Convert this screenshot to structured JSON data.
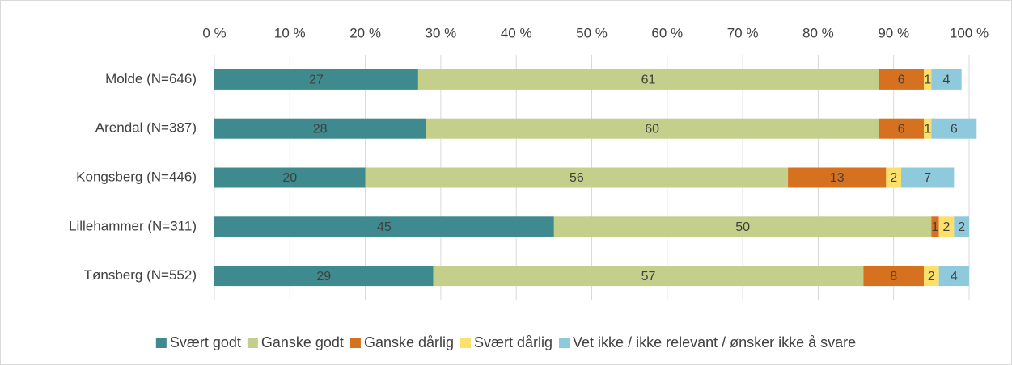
{
  "chart_data": {
    "type": "stacked-bar-horizontal",
    "categories": [
      "Molde (N=646)",
      "Arendal (N=387)",
      "Kongsberg (N=446)",
      "Lillehammer (N=311)",
      "Tønsberg (N=552)"
    ],
    "series": [
      {
        "name": "Svært godt",
        "color": "#3e8a8e",
        "values": [
          27,
          28,
          20,
          45,
          29
        ]
      },
      {
        "name": "Ganske godt",
        "color": "#c4cf8c",
        "values": [
          61,
          60,
          56,
          50,
          57
        ]
      },
      {
        "name": "Ganske dårlig",
        "color": "#d6711f",
        "values": [
          6,
          6,
          13,
          1,
          8
        ]
      },
      {
        "name": "Svært dårlig",
        "color": "#fde06c",
        "values": [
          1,
          1,
          2,
          2,
          2
        ]
      },
      {
        "name": "Vet ikke / ikke relevant /  ønsker ikke å svare",
        "color": "#8ecadb",
        "values": [
          4,
          6,
          7,
          2,
          4
        ]
      }
    ],
    "xlim": [
      0,
      100
    ],
    "xticks": [
      {
        "value": 0,
        "label": "0 %"
      },
      {
        "value": 10,
        "label": "10 %"
      },
      {
        "value": 20,
        "label": "20 %"
      },
      {
        "value": 30,
        "label": "30 %"
      },
      {
        "value": 40,
        "label": "40 %"
      },
      {
        "value": 50,
        "label": "50 %"
      },
      {
        "value": 60,
        "label": "60 %"
      },
      {
        "value": 70,
        "label": "70 %"
      },
      {
        "value": 80,
        "label": "80 %"
      },
      {
        "value": 90,
        "label": "90 %"
      },
      {
        "value": 100,
        "label": "100 %"
      }
    ],
    "grid": true,
    "legend": "bottom"
  }
}
